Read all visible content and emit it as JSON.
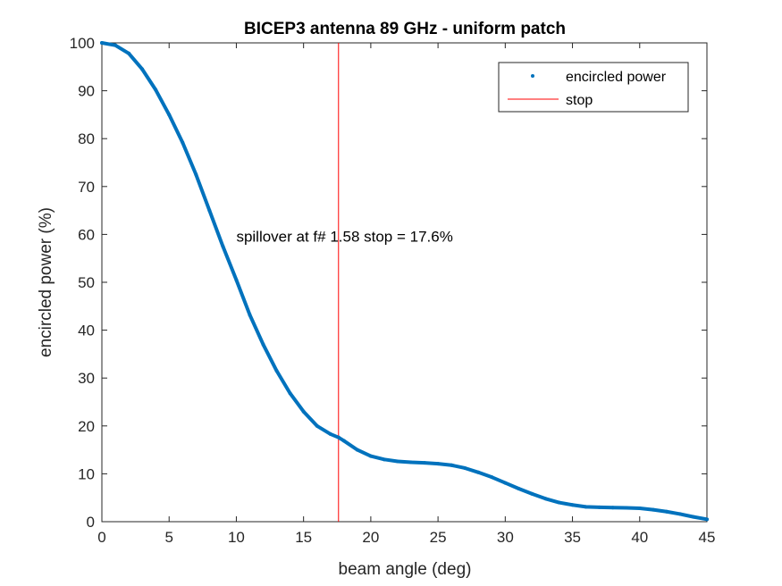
{
  "chart_data": {
    "type": "line",
    "title": "BICEP3 antenna 89 GHz - uniform patch",
    "xlabel": "beam angle (deg)",
    "ylabel": "encircled power (%)",
    "xlim": [
      0,
      45
    ],
    "ylim": [
      0,
      100
    ],
    "xticks": [
      "0",
      "5",
      "10",
      "15",
      "20",
      "25",
      "30",
      "35",
      "40",
      "45"
    ],
    "yticks": [
      "0",
      "10",
      "20",
      "30",
      "40",
      "50",
      "60",
      "70",
      "80",
      "90",
      "100"
    ],
    "grid": false,
    "legend_position": "top-right",
    "annotation": {
      "text": "spillover at f# 1.58 stop = 17.6%",
      "x": 10,
      "y": 60
    },
    "series": [
      {
        "name": "encircled power",
        "color": "#0072BD",
        "style": "dot-line",
        "x": [
          0,
          1,
          2,
          3,
          4,
          5,
          6,
          7,
          8,
          9,
          10,
          11,
          12,
          13,
          14,
          15,
          16,
          17,
          17.6,
          18,
          19,
          20,
          21,
          22,
          23,
          24,
          25,
          26,
          27,
          28,
          29,
          30,
          31,
          32,
          33,
          34,
          35,
          36,
          37,
          38,
          39,
          40,
          41,
          42,
          43,
          44,
          45
        ],
        "y": [
          100,
          99.5,
          97.8,
          94.5,
          90.2,
          85.0,
          79.2,
          72.5,
          65.0,
          57.5,
          50.5,
          43.2,
          37.0,
          31.5,
          26.8,
          23.0,
          20.0,
          18.3,
          17.6,
          16.9,
          15.0,
          13.7,
          13.0,
          12.6,
          12.4,
          12.3,
          12.1,
          11.8,
          11.2,
          10.3,
          9.3,
          8.1,
          6.9,
          5.8,
          4.8,
          4.0,
          3.5,
          3.1,
          3.0,
          2.95,
          2.9,
          2.8,
          2.5,
          2.1,
          1.6,
          1.0,
          0.5
        ]
      },
      {
        "name": "stop",
        "color": "#FF0000",
        "style": "line",
        "x": [
          17.6,
          17.6
        ],
        "y": [
          0,
          100
        ]
      }
    ]
  }
}
